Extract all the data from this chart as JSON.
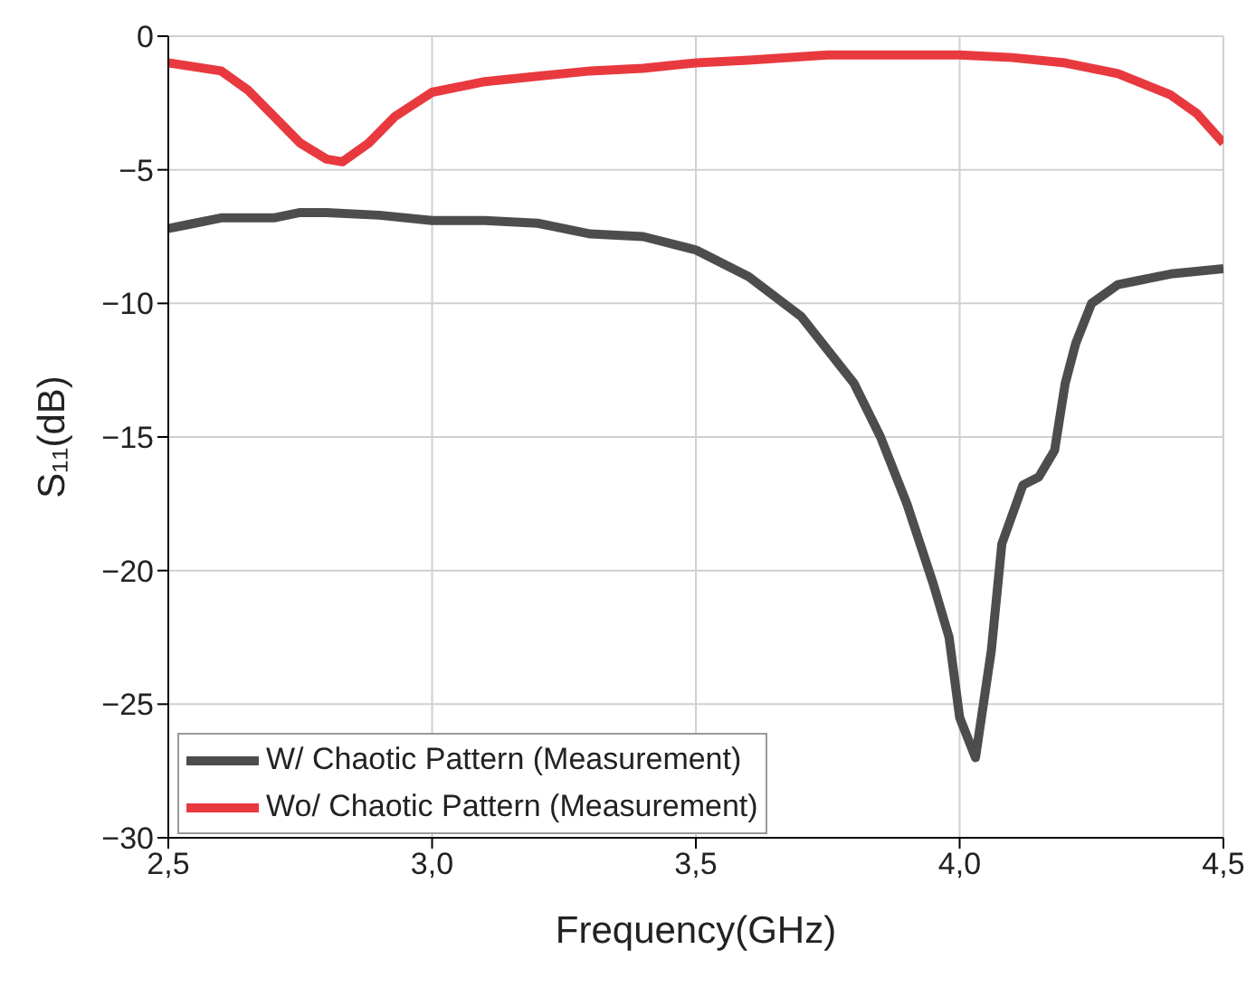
{
  "chart_data": {
    "type": "line",
    "xlabel": "Frequency(GHz)",
    "ylabel": "S₁₁(dB)",
    "xlim": [
      2.5,
      4.5
    ],
    "xticks": [
      {
        "value": 2.5,
        "label": "2,5"
      },
      {
        "value": 3.0,
        "label": "3,0"
      },
      {
        "value": 3.5,
        "label": "3,5"
      },
      {
        "value": 4.0,
        "label": "4,0"
      },
      {
        "value": 4.5,
        "label": "4,5"
      }
    ],
    "ylim": [
      -30,
      0
    ],
    "yticks": [
      {
        "value": -30,
        "label": "−30"
      },
      {
        "value": -25,
        "label": "−25"
      },
      {
        "value": -20,
        "label": "−20"
      },
      {
        "value": -15,
        "label": "−15"
      },
      {
        "value": -10,
        "label": "−10"
      },
      {
        "value": -5,
        "label": "−5"
      },
      0
    ],
    "grid": true,
    "legend": "bottom left",
    "marker": "none",
    "line_style": "solid",
    "series": [
      {
        "name": "W/ Chaotic Pattern (Measurement)",
        "color": "#4d4d4d",
        "x": [
          2.5,
          2.55,
          2.6,
          2.7,
          2.75,
          2.8,
          2.9,
          3.0,
          3.1,
          3.2,
          3.3,
          3.4,
          3.5,
          3.6,
          3.7,
          3.8,
          3.85,
          3.9,
          3.95,
          3.98,
          4.0,
          4.03,
          4.06,
          4.08,
          4.12,
          4.15,
          4.18,
          4.2,
          4.22,
          4.25,
          4.3,
          4.35,
          4.4,
          4.5
        ],
        "values": [
          -7.2,
          -7.0,
          -6.8,
          -6.8,
          -6.6,
          -6.6,
          -6.7,
          -6.9,
          -6.9,
          -7.0,
          -7.4,
          -7.5,
          -8.0,
          -9.0,
          -10.5,
          -13,
          -15,
          -17.5,
          -20.5,
          -22.5,
          -25.5,
          -27,
          -23,
          -19,
          -16.8,
          -16.5,
          -15.5,
          -13,
          -11.5,
          -10,
          -9.3,
          -9.1,
          -8.9,
          -8.7
        ]
      },
      {
        "name": "Wo/ Chaotic Pattern (Measurement)",
        "color": "#e8393f",
        "x": [
          2.5,
          2.6,
          2.65,
          2.7,
          2.75,
          2.8,
          2.83,
          2.88,
          2.93,
          3.0,
          3.1,
          3.2,
          3.3,
          3.4,
          3.5,
          3.6,
          3.75,
          3.9,
          4.0,
          4.1,
          4.2,
          4.3,
          4.4,
          4.45,
          4.5
        ],
        "values": [
          -1.0,
          -1.3,
          -2.0,
          -3.0,
          -4.0,
          -4.6,
          -4.7,
          -4.0,
          -3.0,
          -2.1,
          -1.7,
          -1.5,
          -1.3,
          -1.2,
          -1.0,
          -0.9,
          -0.7,
          -0.7,
          -0.7,
          -0.8,
          -1.0,
          -1.4,
          -2.2,
          -2.9,
          -4.0
        ]
      }
    ]
  }
}
